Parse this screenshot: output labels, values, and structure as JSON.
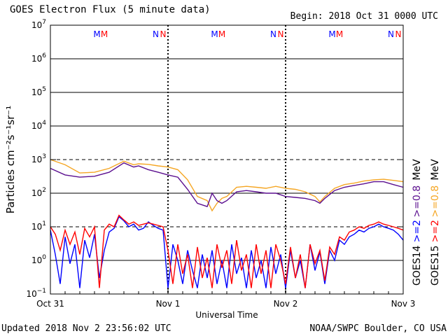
{
  "header": {
    "title": "GOES Electron Flux (5 minute data)",
    "begin": "Begin: 2018 Oct 31 0000 UTC"
  },
  "footer": {
    "updated": "Updated 2018 Nov  2 23:56:02 UTC",
    "credit": "NOAA/SWPC Boulder, CO USA"
  },
  "colors": {
    "goes14_ge2": "#0000ff",
    "goes15_ge2": "#ff0000",
    "goes14_ge08": "#5b0f8f",
    "goes15_ge08": "#f5a623"
  },
  "chart_data": {
    "type": "line",
    "title": "GOES Electron Flux (5 minute data)",
    "xlabel": "Universal Time",
    "ylabel": "Particles cm⁻²s⁻¹sr⁻¹",
    "yscale": "log",
    "ylim": [
      0.1,
      10000000
    ],
    "xlim": [
      0,
      72
    ],
    "x_unit": "hours since 2018 Oct 31 0000 UTC",
    "x_ticks": [
      {
        "x": 0,
        "label": "Oct 31"
      },
      {
        "x": 24,
        "label": "Nov 1"
      },
      {
        "x": 48,
        "label": "Nov 2"
      },
      {
        "x": 72,
        "label": "Nov 3"
      }
    ],
    "y_ticks": [
      {
        "exp": -1,
        "base": "10",
        "sup": "−1"
      },
      {
        "exp": 0,
        "base": "10",
        "sup": "0"
      },
      {
        "exp": 1,
        "base": "10",
        "sup": "1"
      },
      {
        "exp": 2,
        "base": "10",
        "sup": "2"
      },
      {
        "exp": 3,
        "base": "10",
        "sup": "3"
      },
      {
        "exp": 4,
        "base": "10",
        "sup": "4"
      },
      {
        "exp": 5,
        "base": "10",
        "sup": "5"
      },
      {
        "exp": 6,
        "base": "10",
        "sup": "6"
      },
      {
        "exp": 7,
        "base": "10",
        "sup": "7"
      }
    ],
    "threshold_lines": [
      10,
      1000
    ],
    "grid_lines": [
      1,
      100,
      10000,
      100000,
      1000000
    ],
    "legend": [
      {
        "label": "GOES14",
        "color": "#000000"
      },
      {
        "label": ">=2",
        "color": "#0000ff"
      },
      {
        "label": ">=0.8",
        "color": "#5b0f8f"
      },
      {
        "label": "MeV",
        "color": "#000000"
      },
      {
        "label": "GOES15",
        "color": "#000000"
      },
      {
        "label": ">=2",
        "color": "#ff0000"
      },
      {
        "label": ">=0.8",
        "color": "#f5a623"
      },
      {
        "label": "MeV",
        "color": "#000000"
      }
    ],
    "markers": [
      {
        "x": 9.5,
        "label": "M",
        "color": "#0000ff"
      },
      {
        "x": 11.0,
        "label": "M",
        "color": "#ff0000"
      },
      {
        "x": 21.5,
        "label": "N",
        "color": "#0000ff"
      },
      {
        "x": 23.0,
        "label": "N",
        "color": "#ff0000"
      },
      {
        "x": 33.5,
        "label": "M",
        "color": "#0000ff"
      },
      {
        "x": 35.0,
        "label": "M",
        "color": "#ff0000"
      },
      {
        "x": 45.5,
        "label": "N",
        "color": "#0000ff"
      },
      {
        "x": 47.0,
        "label": "N",
        "color": "#ff0000"
      },
      {
        "x": 57.5,
        "label": "M",
        "color": "#0000ff"
      },
      {
        "x": 59.0,
        "label": "M",
        "color": "#ff0000"
      },
      {
        "x": 69.5,
        "label": "N",
        "color": "#0000ff"
      },
      {
        "x": 71.0,
        "label": "N",
        "color": "#ff0000"
      }
    ],
    "series": [
      {
        "name": "GOES15 >=0.8 MeV",
        "color": "#f5a623",
        "x": [
          0,
          3,
          6,
          9,
          12,
          15,
          17,
          18,
          20,
          22,
          24,
          26,
          28,
          30,
          32,
          33,
          34,
          35,
          36,
          38,
          40,
          42,
          44,
          46,
          48,
          50,
          52,
          54,
          55,
          56,
          58,
          60,
          62,
          64,
          66,
          68,
          70,
          72
        ],
        "y": [
          1000,
          700,
          400,
          420,
          550,
          900,
          700,
          750,
          720,
          650,
          600,
          500,
          250,
          80,
          60,
          30,
          50,
          70,
          80,
          150,
          160,
          150,
          140,
          160,
          140,
          130,
          110,
          80,
          55,
          80,
          140,
          180,
          200,
          230,
          250,
          260,
          240,
          220
        ]
      },
      {
        "name": "GOES14 >=0.8 MeV",
        "color": "#5b0f8f",
        "x": [
          0,
          3,
          6,
          9,
          12,
          15,
          17,
          18,
          20,
          22,
          24,
          26,
          28,
          30,
          32,
          33,
          34,
          35,
          36,
          38,
          40,
          42,
          44,
          46,
          48,
          50,
          52,
          54,
          55,
          56,
          58,
          60,
          62,
          64,
          66,
          68,
          70,
          72
        ],
        "y": [
          550,
          350,
          300,
          320,
          420,
          800,
          600,
          650,
          500,
          420,
          350,
          300,
          130,
          50,
          40,
          100,
          60,
          50,
          60,
          110,
          120,
          110,
          100,
          100,
          80,
          75,
          70,
          60,
          50,
          70,
          120,
          150,
          170,
          190,
          220,
          220,
          180,
          150
        ]
      },
      {
        "name": "GOES14 >=2 MeV",
        "color": "#0000ff",
        "x": [
          0,
          1,
          2,
          3,
          4,
          5,
          6,
          7,
          8,
          9,
          10,
          11,
          12,
          13,
          14,
          15,
          16,
          17,
          18,
          19,
          20,
          21,
          22,
          23,
          24,
          25,
          26,
          27,
          28,
          29,
          30,
          31,
          32,
          33,
          34,
          35,
          36,
          37,
          38,
          39,
          40,
          41,
          42,
          43,
          44,
          45,
          46,
          47,
          48,
          49,
          50,
          51,
          52,
          53,
          54,
          55,
          56,
          57,
          58,
          59,
          60,
          61,
          62,
          63,
          64,
          65,
          66,
          67,
          68,
          69,
          70,
          71,
          72
        ],
        "y": [
          8,
          1.5,
          0.2,
          5,
          0.8,
          3,
          0.15,
          4,
          1.2,
          6,
          0.3,
          2,
          7,
          9,
          20,
          15,
          10,
          12,
          8,
          9,
          14,
          11,
          9,
          8,
          0.15,
          3,
          1,
          0.2,
          2,
          0.5,
          0.15,
          1.5,
          0.3,
          2,
          0.2,
          1,
          0.15,
          3,
          0.4,
          1.2,
          0.15,
          2,
          0.3,
          1,
          0.15,
          2.5,
          0.4,
          1.5,
          0.15,
          2,
          0.3,
          1,
          0.15,
          3,
          0.5,
          1.8,
          0.2,
          2,
          1,
          4,
          3,
          5,
          6,
          8,
          7,
          9,
          10,
          12,
          10,
          9,
          8,
          6,
          4
        ]
      },
      {
        "name": "GOES15 >=2 MeV",
        "color": "#ff0000",
        "x": [
          0,
          1,
          2,
          3,
          4,
          5,
          6,
          7,
          8,
          9,
          10,
          11,
          12,
          13,
          14,
          15,
          16,
          17,
          18,
          19,
          20,
          21,
          22,
          23,
          24,
          25,
          26,
          27,
          28,
          29,
          30,
          31,
          32,
          33,
          34,
          35,
          36,
          37,
          38,
          39,
          40,
          41,
          42,
          43,
          44,
          45,
          46,
          47,
          48,
          49,
          50,
          51,
          52,
          53,
          54,
          55,
          56,
          57,
          58,
          59,
          60,
          61,
          62,
          63,
          64,
          65,
          66,
          67,
          68,
          69,
          70,
          71,
          72
        ],
        "y": [
          10,
          6,
          2,
          8,
          3,
          7,
          1.5,
          9,
          5,
          10,
          0.15,
          8,
          12,
          10,
          22,
          16,
          12,
          14,
          11,
          12,
          13,
          12,
          11,
          10,
          2,
          0.2,
          3,
          0.4,
          1.5,
          0.15,
          2.5,
          0.3,
          1.2,
          0.15,
          3,
          0.6,
          2,
          0.2,
          4,
          0.5,
          1.5,
          0.15,
          3,
          0.4,
          2,
          0.15,
          3,
          1,
          0.2,
          2.5,
          0.3,
          1.5,
          0.15,
          3,
          0.8,
          2,
          0.25,
          2.5,
          1.5,
          5,
          4,
          7,
          8,
          10,
          9,
          11,
          12,
          14,
          12,
          11,
          10,
          9,
          8
        ]
      }
    ]
  }
}
